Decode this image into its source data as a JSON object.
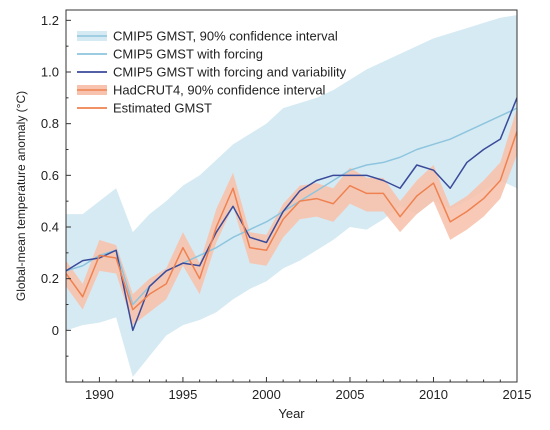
{
  "chart_data": {
    "type": "line",
    "title": "",
    "xlabel": "Year",
    "ylabel": "Global-mean temperature anomaly (°C)",
    "xlim": [
      1988,
      2015
    ],
    "ylim": [
      -0.2,
      1.24
    ],
    "xticks": [
      1990,
      1995,
      2000,
      2005,
      2010,
      2015
    ],
    "yticks": [
      0,
      0.2,
      0.4,
      0.6,
      0.8,
      1.0,
      1.2
    ],
    "ytick_labels": [
      "0",
      "0.2",
      "0.4",
      "0.6",
      "0.8",
      "1.0",
      "1.2"
    ],
    "grid": false,
    "legend_position": "top-left",
    "x": [
      1988,
      1989,
      1990,
      1991,
      1992,
      1993,
      1994,
      1995,
      1996,
      1997,
      1998,
      1999,
      2000,
      2001,
      2002,
      2003,
      2004,
      2005,
      2006,
      2007,
      2008,
      2009,
      2010,
      2011,
      2012,
      2013,
      2014,
      2015
    ],
    "bands": [
      {
        "name": "CMIP5 GMST, 90% confidence interval",
        "color": "#d6eaf3",
        "lower": [
          0.0,
          0.02,
          0.03,
          0.05,
          -0.18,
          -0.1,
          -0.02,
          0.02,
          0.04,
          0.07,
          0.12,
          0.16,
          0.19,
          0.24,
          0.27,
          0.31,
          0.35,
          0.4,
          0.39,
          0.43,
          0.48,
          0.45,
          0.5,
          0.47,
          0.5,
          0.54,
          0.58,
          0.55
        ],
        "upper": [
          0.45,
          0.45,
          0.5,
          0.55,
          0.38,
          0.45,
          0.5,
          0.56,
          0.6,
          0.66,
          0.72,
          0.76,
          0.8,
          0.86,
          0.88,
          0.9,
          0.93,
          0.97,
          1.01,
          1.04,
          1.07,
          1.1,
          1.13,
          1.15,
          1.17,
          1.19,
          1.21,
          1.22
        ]
      },
      {
        "name": "HadCRUT4, 90% confidence interval",
        "color": "#f7c3ae",
        "lower": [
          0.17,
          0.08,
          0.23,
          0.22,
          0.02,
          0.07,
          0.12,
          0.25,
          0.14,
          0.34,
          0.48,
          0.26,
          0.25,
          0.36,
          0.43,
          0.44,
          0.42,
          0.49,
          0.46,
          0.46,
          0.38,
          0.45,
          0.5,
          0.35,
          0.39,
          0.44,
          0.51,
          0.68
        ],
        "upper": [
          0.27,
          0.18,
          0.35,
          0.33,
          0.14,
          0.2,
          0.24,
          0.38,
          0.26,
          0.47,
          0.61,
          0.38,
          0.37,
          0.49,
          0.56,
          0.57,
          0.55,
          0.63,
          0.59,
          0.59,
          0.5,
          0.58,
          0.64,
          0.48,
          0.52,
          0.58,
          0.65,
          0.86
        ]
      }
    ],
    "series": [
      {
        "name": "CMIP5 GMST with forcing",
        "color": "#8ec5de",
        "width": 1.5,
        "values": [
          0.23,
          0.25,
          0.29,
          0.31,
          0.1,
          0.17,
          0.23,
          0.26,
          0.29,
          0.32,
          0.36,
          0.39,
          0.42,
          0.46,
          0.5,
          0.54,
          0.58,
          0.62,
          0.64,
          0.65,
          0.67,
          0.7,
          0.72,
          0.74,
          0.77,
          0.8,
          0.83,
          0.86
        ]
      },
      {
        "name": "CMIP5 GMST with forcing and variability",
        "color": "#3a4a9a",
        "width": 1.5,
        "values": [
          0.23,
          0.27,
          0.28,
          0.31,
          0.0,
          0.17,
          0.23,
          0.26,
          0.25,
          0.38,
          0.48,
          0.36,
          0.34,
          0.46,
          0.54,
          0.58,
          0.6,
          0.6,
          0.6,
          0.58,
          0.55,
          0.64,
          0.62,
          0.55,
          0.65,
          0.7,
          0.74,
          0.9
        ]
      },
      {
        "name": "Estimated GMST",
        "color": "#ef8250",
        "width": 1.5,
        "values": [
          0.22,
          0.13,
          0.29,
          0.28,
          0.08,
          0.14,
          0.18,
          0.32,
          0.2,
          0.4,
          0.55,
          0.32,
          0.31,
          0.43,
          0.5,
          0.51,
          0.49,
          0.56,
          0.53,
          0.53,
          0.44,
          0.52,
          0.57,
          0.42,
          0.46,
          0.51,
          0.58,
          0.77
        ]
      }
    ],
    "legend": [
      {
        "label": "CMIP5 GMST, 90% confidence interval",
        "kind": "band",
        "color": "#d6eaf3",
        "edge": "#8ec5de"
      },
      {
        "label": "CMIP5 GMST with forcing",
        "kind": "line",
        "color": "#8ec5de"
      },
      {
        "label": "CMIP5 GMST with forcing and variability",
        "kind": "line",
        "color": "#3a4a9a"
      },
      {
        "label": "HadCRUT4, 90% confidence interval",
        "kind": "band",
        "color": "#f7c3ae",
        "edge": "#ef8250"
      },
      {
        "label": "Estimated GMST",
        "kind": "line",
        "color": "#ef8250"
      }
    ]
  }
}
